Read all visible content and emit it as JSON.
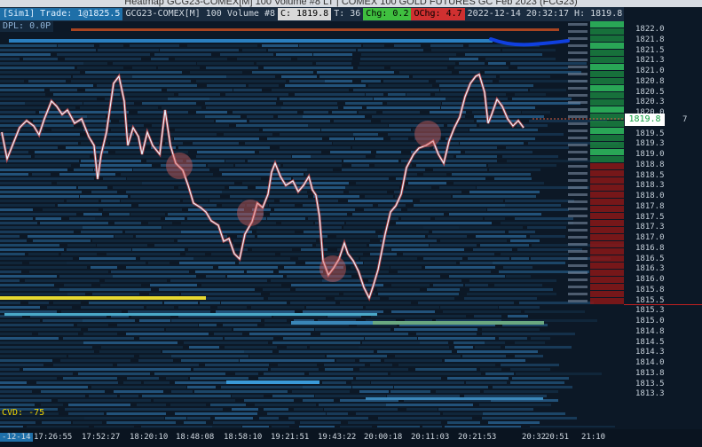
{
  "window": {
    "title": "Heatmap GCG23-COMEX[M] 100 Volume #8 LT | COMEX 100 GOLD FUTURES GC Feb 2023 (FCG23)"
  },
  "infobar": {
    "sim": "[Sim1]",
    "trade": "Trade: 1@1825.5",
    "symbol": "GCG23-COMEX[M]",
    "volume": "100 Volume",
    "chart_no": "#8",
    "last": "C: 1819.8",
    "ticks": "T: 36",
    "chg": "Chg: 0.2",
    "ochg": "OChg: 4.7",
    "datetime": "2022-12-14  20:32:17",
    "high": "H: 1819.8"
  },
  "dpl": "DPL: 0.0P",
  "cvd": "CVD: -75",
  "ladder": {
    "prices": [
      "1822.0",
      "1821.8",
      "1821.5",
      "1821.3",
      "1821.0",
      "1820.8",
      "1820.5",
      "1820.3",
      "1820.0",
      "1819.8",
      "1819.5",
      "1819.3",
      "1819.0",
      "1818.8",
      "1818.5",
      "1818.3",
      "1818.0",
      "1817.8",
      "1817.5",
      "1817.3",
      "1817.0",
      "1816.8",
      "1816.5",
      "1816.3",
      "1816.0",
      "1815.8",
      "1815.5",
      "1815.3",
      "1815.0",
      "1814.8",
      "1814.5",
      "1814.3",
      "1814.0",
      "1813.8",
      "1813.5",
      "1813.3"
    ],
    "current_price": "1819.8",
    "current_size": "7"
  },
  "time_axis": [
    "-12-14",
    "17:26:55",
    "17:52:27",
    "18:20:10",
    "18:48:08",
    "18:58:10",
    "19:21:51",
    "19:43:22",
    "20:00:18",
    "20:11:03",
    "20:21:53",
    "20:32",
    "20:51",
    "21:10"
  ],
  "accent": {
    "bid": "#2fbf5f",
    "ask": "#d03030",
    "annotation": "#1040e0",
    "cvd": "#f2d600"
  }
}
